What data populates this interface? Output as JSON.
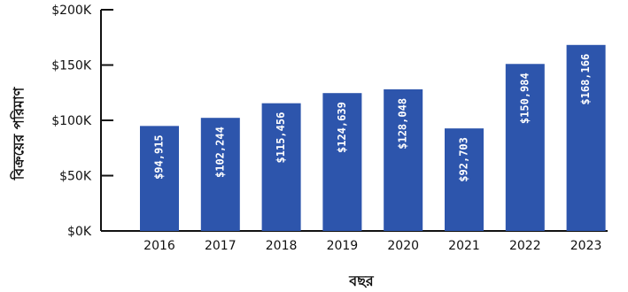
{
  "chart_data": {
    "type": "bar",
    "title": "",
    "xlabel": "বছর",
    "ylabel": "বিক্রয়ের পরিমাণ",
    "categories": [
      "2016",
      "2017",
      "2018",
      "2019",
      "2020",
      "2021",
      "2022",
      "2023"
    ],
    "values": [
      94915,
      102244,
      115456,
      124639,
      128048,
      92703,
      150984,
      168166
    ],
    "data_labels": [
      "$94,915",
      "$102,244",
      "$115,456",
      "$124,639",
      "$128,048",
      "$92,703",
      "$150,984",
      "$168,166"
    ],
    "ylim": [
      0,
      200000
    ],
    "yticks": [
      0,
      50000,
      100000,
      150000,
      200000
    ],
    "ytick_labels": [
      "$0K",
      "$50K",
      "$100K",
      "$150K",
      "$200K"
    ],
    "grid": false,
    "legend": "none",
    "colors": {
      "bar": "#2d55ac",
      "axis": "#111111",
      "label": "#ffffff"
    }
  }
}
